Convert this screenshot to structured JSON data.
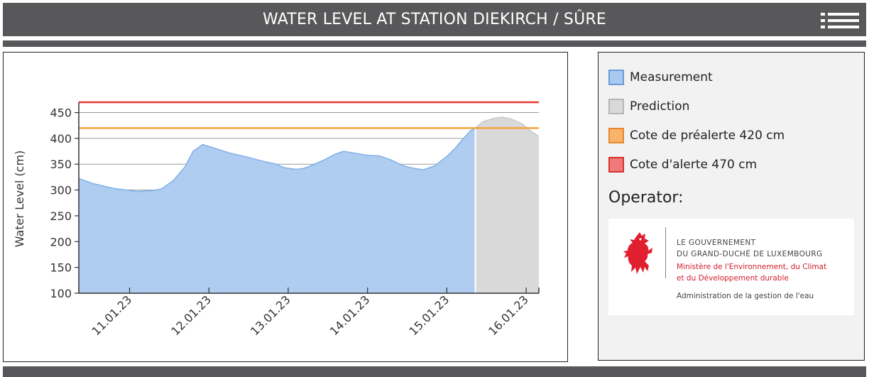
{
  "header": {
    "title": "WATER LEVEL AT STATION DIEKIRCH / SÛRE",
    "menu_icon": "list-menu-icon"
  },
  "chart_data": {
    "type": "area",
    "ylabel": "Water Level (cm)",
    "ylim": [
      100,
      470
    ],
    "yticks": [
      100,
      150,
      200,
      250,
      300,
      350,
      400,
      450
    ],
    "xticks": [
      {
        "label": "11.01.23",
        "x": 1
      },
      {
        "label": "12.01.23",
        "x": 2
      },
      {
        "label": "13.01.23",
        "x": 3
      },
      {
        "label": "14.01.23",
        "x": 4
      },
      {
        "label": "15.01.23",
        "x": 5
      },
      {
        "label": "16.01.23",
        "x": 6
      }
    ],
    "xlim": [
      0.36,
      6.16
    ],
    "grid": true,
    "series": [
      {
        "name": "Measurement",
        "color": "#aecdf0",
        "stroke": "#7fb0e8",
        "points": [
          [
            0.36,
            322
          ],
          [
            0.55,
            312
          ],
          [
            0.8,
            303
          ],
          [
            1.0,
            299
          ],
          [
            1.1,
            297
          ],
          [
            1.3,
            299
          ],
          [
            1.4,
            302
          ],
          [
            1.55,
            318
          ],
          [
            1.7,
            345
          ],
          [
            1.8,
            375
          ],
          [
            1.92,
            388
          ],
          [
            2.05,
            382
          ],
          [
            2.25,
            372
          ],
          [
            2.45,
            365
          ],
          [
            2.65,
            357
          ],
          [
            2.85,
            350
          ],
          [
            2.95,
            343
          ],
          [
            3.1,
            340
          ],
          [
            3.2,
            342
          ],
          [
            3.3,
            348
          ],
          [
            3.45,
            358
          ],
          [
            3.6,
            370
          ],
          [
            3.7,
            375
          ],
          [
            3.85,
            371
          ],
          [
            4.0,
            367
          ],
          [
            4.15,
            366
          ],
          [
            4.3,
            358
          ],
          [
            4.45,
            347
          ],
          [
            4.55,
            343
          ],
          [
            4.7,
            339
          ],
          [
            4.85,
            347
          ],
          [
            5.0,
            365
          ],
          [
            5.1,
            380
          ],
          [
            5.2,
            398
          ],
          [
            5.3,
            415
          ],
          [
            5.36,
            420
          ]
        ]
      },
      {
        "name": "Prediction",
        "color": "#d9d9d9",
        "stroke": "#c8c8c8",
        "points": [
          [
            5.36,
            420
          ],
          [
            5.45,
            432
          ],
          [
            5.6,
            439
          ],
          [
            5.7,
            441
          ],
          [
            5.8,
            438
          ],
          [
            5.95,
            428
          ],
          [
            6.05,
            415
          ],
          [
            6.16,
            404
          ]
        ]
      }
    ],
    "thresholds": [
      {
        "name": "Cote de préalerte 420 cm",
        "value": 420,
        "color": "#f4a23b"
      },
      {
        "name": "Cote d'alerte 470 cm",
        "value": 470,
        "color": "#e53935"
      }
    ]
  },
  "legend": {
    "items": [
      {
        "label": "Measurement",
        "fill": "#a9caf0",
        "border": "#6b9ad8"
      },
      {
        "label": "Prediction",
        "fill": "#d9d9d9",
        "border": "#b5b5b5"
      },
      {
        "label": "Cote de préalerte 420 cm",
        "fill": "#f8b46a",
        "border": "#e8862a"
      },
      {
        "label": "Cote d'alerte 470 cm",
        "fill": "#f07a7a",
        "border": "#d93030"
      }
    ]
  },
  "operator": {
    "heading": "Operator:",
    "gov_line1": "LE GOUVERNEMENT",
    "gov_line2": "DU GRAND-DUCHÉ DE LUXEMBOURG",
    "ministry_line1": "Ministère de l'Environnement, du Climat",
    "ministry_line2": "et du Développement durable",
    "administration": "Administration de la gestion de l'eau",
    "logo_icon": "red-lion-icon"
  }
}
